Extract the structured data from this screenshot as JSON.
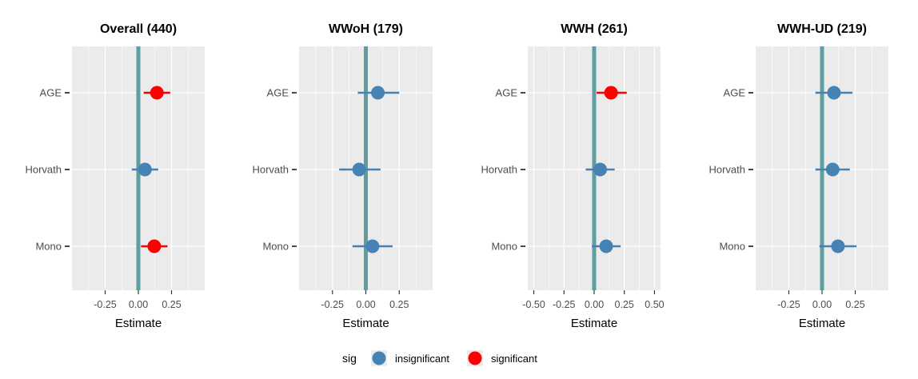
{
  "chart_data": {
    "type": "forest",
    "categories": [
      "AGE",
      "Horvath",
      "Mono"
    ],
    "xlabel": "Estimate",
    "colors": {
      "insignificant": "#4682b4",
      "significant": "#ff0000",
      "zero_line": "#5f9ea0",
      "panel_bg": "#ebebeb",
      "grid": "#ffffff"
    },
    "panels": [
      {
        "title": "Overall (440)",
        "xlim": [
          -0.5,
          0.5
        ],
        "ticks": [
          -0.25,
          0.0,
          0.25
        ],
        "tick_labels": [
          "-0.25",
          "0.00",
          "0.25"
        ],
        "points": [
          {
            "category": "AGE",
            "estimate": 0.14,
            "lower": 0.04,
            "upper": 0.24,
            "sig": "significant"
          },
          {
            "category": "Horvath",
            "estimate": 0.05,
            "lower": -0.05,
            "upper": 0.15,
            "sig": "insignificant"
          },
          {
            "category": "Mono",
            "estimate": 0.12,
            "lower": 0.02,
            "upper": 0.22,
            "sig": "significant"
          }
        ]
      },
      {
        "title": "WWoH (179)",
        "xlim": [
          -0.5,
          0.5
        ],
        "ticks": [
          -0.25,
          0.0,
          0.25
        ],
        "tick_labels": [
          "-0.25",
          "0.00",
          "0.25"
        ],
        "points": [
          {
            "category": "AGE",
            "estimate": 0.09,
            "lower": -0.06,
            "upper": 0.25,
            "sig": "insignificant"
          },
          {
            "category": "Horvath",
            "estimate": -0.05,
            "lower": -0.2,
            "upper": 0.11,
            "sig": "insignificant"
          },
          {
            "category": "Mono",
            "estimate": 0.05,
            "lower": -0.1,
            "upper": 0.2,
            "sig": "insignificant"
          }
        ]
      },
      {
        "title": "WWH (261)",
        "xlim": [
          -0.55,
          0.55
        ],
        "ticks": [
          -0.5,
          -0.25,
          0.0,
          0.25,
          0.5
        ],
        "tick_labels": [
          "-0.50",
          "-0.25",
          "0.00",
          "0.25",
          "0.50"
        ],
        "points": [
          {
            "category": "AGE",
            "estimate": 0.14,
            "lower": 0.02,
            "upper": 0.27,
            "sig": "significant"
          },
          {
            "category": "Horvath",
            "estimate": 0.05,
            "lower": -0.07,
            "upper": 0.17,
            "sig": "insignificant"
          },
          {
            "category": "Mono",
            "estimate": 0.1,
            "lower": -0.02,
            "upper": 0.22,
            "sig": "insignificant"
          }
        ]
      },
      {
        "title": "WWH-UD (219)",
        "xlim": [
          -0.5,
          0.5
        ],
        "ticks": [
          -0.25,
          0.0,
          0.25
        ],
        "tick_labels": [
          "-0.25",
          "0.00",
          "0.25"
        ],
        "points": [
          {
            "category": "AGE",
            "estimate": 0.09,
            "lower": -0.05,
            "upper": 0.23,
            "sig": "insignificant"
          },
          {
            "category": "Horvath",
            "estimate": 0.08,
            "lower": -0.05,
            "upper": 0.21,
            "sig": "insignificant"
          },
          {
            "category": "Mono",
            "estimate": 0.12,
            "lower": -0.02,
            "upper": 0.26,
            "sig": "insignificant"
          }
        ]
      }
    ],
    "legend": {
      "title": "sig",
      "placement": "bottom",
      "entries": [
        {
          "key": "insignificant",
          "label": "insignificant"
        },
        {
          "key": "significant",
          "label": "significant"
        }
      ]
    }
  }
}
